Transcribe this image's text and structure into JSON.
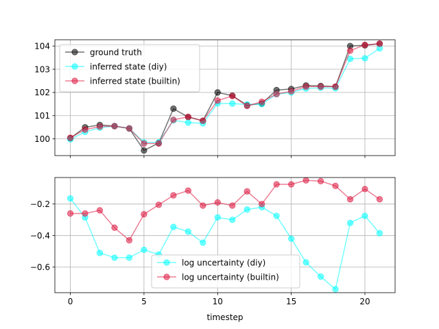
{
  "chart_data": [
    {
      "type": "line",
      "xlabel": "",
      "ylabel": "",
      "xlim": [
        -1.05,
        22.05
      ],
      "ylim": [
        99.28,
        104.27
      ],
      "xticks": [
        0,
        5,
        10,
        15,
        20
      ],
      "xticklabels": [
        "",
        "",
        "",
        "",
        ""
      ],
      "yticks": [
        100,
        101,
        102,
        103,
        104
      ],
      "yticklabels": [
        "100",
        "101",
        "102",
        "103",
        "104"
      ],
      "grid": true,
      "legend": "upper-left",
      "series": [
        {
          "name": "ground truth",
          "color": "#000000",
          "alpha": 0.55,
          "x": [
            0,
            1,
            2,
            3,
            4,
            5,
            6,
            7,
            8,
            9,
            10,
            11,
            12,
            13,
            14,
            15,
            16,
            17,
            18,
            19,
            20,
            21
          ],
          "y": [
            100.03,
            100.5,
            100.6,
            100.55,
            100.45,
            99.5,
            99.82,
            101.3,
            100.94,
            100.78,
            102.0,
            101.86,
            101.45,
            101.52,
            102.1,
            102.15,
            102.3,
            102.28,
            102.25,
            104.0,
            104.03,
            104.1
          ]
        },
        {
          "name": "inferred state (diy)",
          "color": "#00ffff",
          "alpha": 0.55,
          "x": [
            0,
            1,
            2,
            3,
            4,
            5,
            6,
            7,
            8,
            9,
            10,
            11,
            12,
            13,
            14,
            15,
            16,
            17,
            18,
            19,
            20,
            21
          ],
          "y": [
            99.98,
            100.3,
            100.48,
            100.55,
            100.45,
            99.85,
            99.85,
            100.8,
            100.7,
            100.67,
            101.53,
            101.52,
            101.48,
            101.5,
            101.92,
            102.0,
            102.17,
            102.2,
            102.18,
            103.45,
            103.47,
            103.9
          ]
        },
        {
          "name": "inferred state (builtin)",
          "color": "#dc143c",
          "alpha": 0.55,
          "x": [
            0,
            1,
            2,
            3,
            4,
            5,
            6,
            7,
            8,
            9,
            10,
            11,
            12,
            13,
            14,
            15,
            16,
            17,
            18,
            19,
            20,
            21
          ],
          "y": [
            100.05,
            100.4,
            100.53,
            100.55,
            100.45,
            99.8,
            99.8,
            100.82,
            100.95,
            100.78,
            101.65,
            101.85,
            101.42,
            101.6,
            101.93,
            102.05,
            102.25,
            102.25,
            102.25,
            103.8,
            104.05,
            104.1
          ]
        }
      ]
    },
    {
      "type": "line",
      "xlabel": "timestep",
      "ylabel": "",
      "xlim": [
        -1.05,
        22.05
      ],
      "ylim": [
        -0.762,
        -0.032
      ],
      "xticks": [
        0,
        5,
        10,
        15,
        20
      ],
      "xticklabels": [
        "0",
        "5",
        "10",
        "15",
        "20"
      ],
      "yticks": [
        -0.6,
        -0.4,
        -0.2
      ],
      "yticklabels": [
        "−0.6",
        "−0.4",
        "−0.2"
      ],
      "grid": true,
      "legend": "lower-center",
      "series": [
        {
          "name": "log uncertainty (diy)",
          "color": "#00ffff",
          "alpha": 0.55,
          "x": [
            0,
            1,
            2,
            3,
            4,
            5,
            6,
            7,
            8,
            9,
            10,
            11,
            12,
            13,
            14,
            15,
            16,
            17,
            18,
            19,
            20,
            21
          ],
          "y": [
            -0.165,
            -0.285,
            -0.51,
            -0.54,
            -0.54,
            -0.49,
            -0.52,
            -0.345,
            -0.375,
            -0.445,
            -0.285,
            -0.3,
            -0.235,
            -0.22,
            -0.275,
            -0.42,
            -0.57,
            -0.66,
            -0.74,
            -0.32,
            -0.275,
            -0.385
          ]
        },
        {
          "name": "log uncertainty (builtin)",
          "color": "#dc143c",
          "alpha": 0.55,
          "x": [
            0,
            1,
            2,
            3,
            4,
            5,
            6,
            7,
            8,
            9,
            10,
            11,
            12,
            13,
            14,
            15,
            16,
            17,
            18,
            19,
            20,
            21
          ],
          "y": [
            -0.26,
            -0.26,
            -0.24,
            -0.35,
            -0.43,
            -0.265,
            -0.205,
            -0.145,
            -0.115,
            -0.21,
            -0.19,
            -0.21,
            -0.12,
            -0.2,
            -0.075,
            -0.075,
            -0.05,
            -0.055,
            -0.085,
            -0.17,
            -0.105,
            -0.17
          ]
        }
      ]
    }
  ]
}
